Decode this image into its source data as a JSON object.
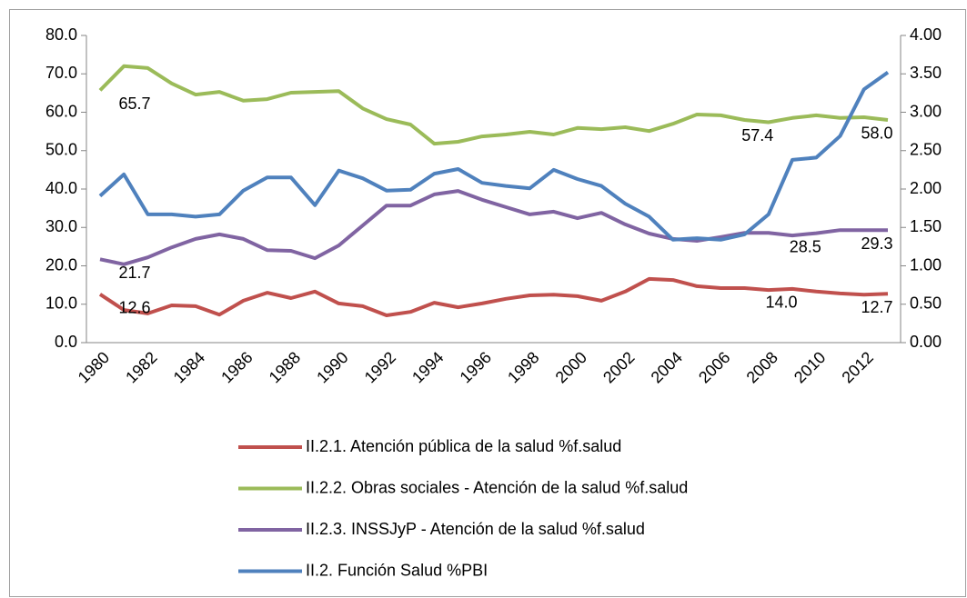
{
  "chart_data": {
    "type": "line",
    "categories": [
      "1980",
      null,
      "1982",
      null,
      "1984",
      null,
      "1986",
      null,
      "1988",
      null,
      "1990",
      null,
      "1992",
      null,
      "1994",
      null,
      "1996",
      null,
      "1998",
      null,
      "2000",
      null,
      "2002",
      null,
      "2004",
      null,
      "2006",
      null,
      "2008",
      null,
      "2010",
      null,
      "2012",
      null
    ],
    "series": [
      {
        "name": "II.2.1. Atención pública de la salud %f.salud",
        "color": "#c0504d",
        "values": [
          12.6,
          8.5,
          7.6,
          9.7,
          9.5,
          7.3,
          10.9,
          13.0,
          11.6,
          13.3,
          10.2,
          9.5,
          7.1,
          8.0,
          10.4,
          9.2,
          10.2,
          11.4,
          12.3,
          12.5,
          12.1,
          10.9,
          13.3,
          16.6,
          16.3,
          14.7,
          14.2,
          14.2,
          13.7,
          14.0,
          13.3,
          12.8,
          12.5,
          12.7
        ],
        "value_labels": [
          "12.6",
          null,
          null,
          null,
          null,
          null,
          null,
          null,
          null,
          null,
          null,
          null,
          null,
          null,
          null,
          null,
          null,
          null,
          null,
          null,
          null,
          null,
          null,
          null,
          null,
          null,
          null,
          null,
          null,
          "14.0",
          null,
          null,
          null,
          "12.7"
        ]
      },
      {
        "name": "II.2.2. Obras sociales - Atención de la salud %f.salud",
        "color": "#9bbb59",
        "values": [
          65.7,
          72.0,
          71.5,
          67.5,
          64.6,
          65.3,
          63.0,
          63.4,
          65.1,
          65.3,
          65.5,
          61.0,
          58.2,
          56.8,
          51.8,
          52.3,
          53.7,
          54.2,
          54.9,
          54.2,
          55.9,
          55.6,
          56.1,
          55.1,
          57.0,
          59.4,
          59.2,
          58.0,
          57.4,
          58.5,
          59.2,
          58.5,
          58.7,
          58.0
        ],
        "value_labels": [
          "65.7",
          null,
          null,
          null,
          null,
          null,
          null,
          null,
          null,
          null,
          null,
          null,
          null,
          null,
          null,
          null,
          null,
          null,
          null,
          null,
          null,
          null,
          null,
          null,
          null,
          null,
          null,
          null,
          "57.4",
          null,
          null,
          null,
          null,
          "58.0"
        ]
      },
      {
        "name": "II.2.3. INSSJyP - Atención de la salud %f.salud",
        "color": "#8064a2",
        "values": [
          21.7,
          20.4,
          22.2,
          24.8,
          27.0,
          28.2,
          27.0,
          24.1,
          23.9,
          22.0,
          25.3,
          30.5,
          35.7,
          35.7,
          38.6,
          39.5,
          37.2,
          35.3,
          33.4,
          34.1,
          32.4,
          33.8,
          30.8,
          28.4,
          27.0,
          26.5,
          27.5,
          28.6,
          28.6,
          27.9,
          28.5,
          29.3,
          29.3,
          29.3
        ],
        "value_labels": [
          "21.7",
          null,
          null,
          null,
          null,
          null,
          null,
          null,
          null,
          null,
          null,
          null,
          null,
          null,
          null,
          null,
          null,
          null,
          null,
          null,
          null,
          null,
          null,
          null,
          null,
          null,
          null,
          null,
          null,
          null,
          "28.5",
          null,
          null,
          "29.3"
        ]
      },
      {
        "name": "II.2. Función Salud %PBI",
        "color": "#4f81bd",
        "axis": "y2",
        "values": [
          1.91,
          2.19,
          1.67,
          1.67,
          1.64,
          1.67,
          1.98,
          2.15,
          2.15,
          1.79,
          2.24,
          2.14,
          1.98,
          1.99,
          2.2,
          2.26,
          2.08,
          2.04,
          2.01,
          2.25,
          2.13,
          2.04,
          1.81,
          1.64,
          1.34,
          1.36,
          1.34,
          1.41,
          1.67,
          2.38,
          2.41,
          2.69,
          3.3,
          3.52
        ]
      }
    ],
    "ylim": [
      0,
      80
    ],
    "yticks": [
      {
        "value": 0,
        "label": "0.0"
      },
      {
        "value": 10,
        "label": "10.0"
      },
      {
        "value": 20,
        "label": "20.0"
      },
      {
        "value": 30,
        "label": "30.0"
      },
      {
        "value": 40,
        "label": "40.0"
      },
      {
        "value": 50,
        "label": "50.0"
      },
      {
        "value": 60,
        "label": "60.0"
      },
      {
        "value": 70,
        "label": "70.0"
      },
      {
        "value": 80,
        "label": "80.0"
      }
    ],
    "y2lim": [
      0,
      4
    ],
    "y2ticks": [
      {
        "value": 0,
        "label": "0.00"
      },
      {
        "value": 0.5,
        "label": "0.50"
      },
      {
        "value": 1,
        "label": "1.00"
      },
      {
        "value": 1.5,
        "label": "1.50"
      },
      {
        "value": 2,
        "label": "2.00"
      },
      {
        "value": 2.5,
        "label": "2.50"
      },
      {
        "value": 3,
        "label": "3.00"
      },
      {
        "value": 3.5,
        "label": "3.50"
      },
      {
        "value": 4,
        "label": "4.00"
      }
    ],
    "grid": false
  }
}
